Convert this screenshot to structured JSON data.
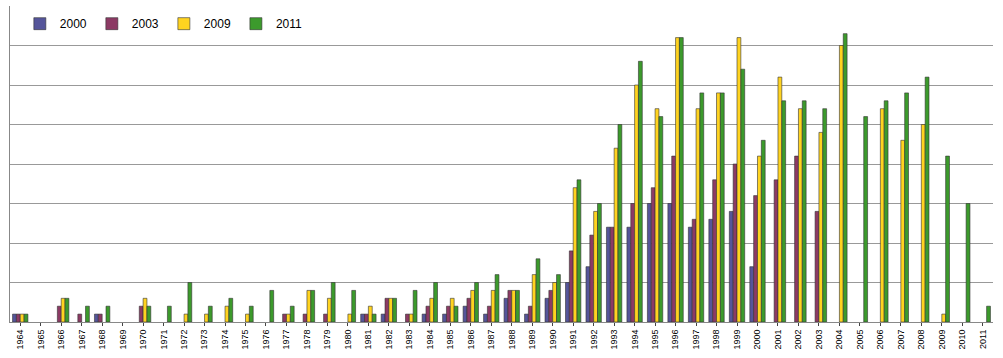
{
  "chart_data": {
    "type": "bar",
    "categories": [
      "1964",
      "1965",
      "1966",
      "1967",
      "1968",
      "1969",
      "1970",
      "1971",
      "1972",
      "1973",
      "1974",
      "1975",
      "1976",
      "1977",
      "1978",
      "1979",
      "1980",
      "1981",
      "1982",
      "1983",
      "1984",
      "1985",
      "1986",
      "1987",
      "1988",
      "1989",
      "1990",
      "1991",
      "1992",
      "1993",
      "1994",
      "1995",
      "1996",
      "1997",
      "1998",
      "1999",
      "2000",
      "2001",
      "2002",
      "2003",
      "2004",
      "2005",
      "2006",
      "2007",
      "2008",
      "2009",
      "2010",
      "2011"
    ],
    "series": [
      {
        "name": "2000",
        "color": "#55559a",
        "values": [
          0.2,
          null,
          null,
          null,
          0.2,
          null,
          null,
          null,
          null,
          null,
          null,
          null,
          null,
          null,
          null,
          null,
          null,
          0.2,
          0.2,
          null,
          0.2,
          0.2,
          0.4,
          0.2,
          0.6,
          0.2,
          0.6,
          1.0,
          1.4,
          2.4,
          2.4,
          3.0,
          3.0,
          2.4,
          2.6,
          2.8,
          1.4,
          null,
          null,
          null,
          null,
          null,
          null,
          null,
          null,
          null,
          null,
          null
        ]
      },
      {
        "name": "2003",
        "color": "#8c3a64",
        "values": [
          0.2,
          null,
          0.4,
          0.2,
          0.2,
          null,
          0.4,
          null,
          null,
          null,
          null,
          null,
          null,
          0.2,
          0.2,
          0.2,
          null,
          0.2,
          0.6,
          0.2,
          0.4,
          0.4,
          0.6,
          0.4,
          0.8,
          0.4,
          0.8,
          1.8,
          2.2,
          2.4,
          3.0,
          3.4,
          4.2,
          2.6,
          3.6,
          4.0,
          3.2,
          3.6,
          4.2,
          2.8,
          null,
          null,
          null,
          null,
          null,
          null,
          null,
          null
        ]
      },
      {
        "name": "2009",
        "color": "#ffd320",
        "values": [
          0.2,
          null,
          0.6,
          null,
          null,
          null,
          0.6,
          null,
          0.2,
          0.2,
          0.4,
          0.2,
          null,
          0.2,
          0.8,
          0.6,
          0.2,
          0.4,
          0.6,
          0.2,
          0.6,
          0.6,
          0.8,
          0.8,
          0.8,
          1.2,
          1.0,
          3.4,
          2.8,
          4.4,
          6.0,
          5.4,
          7.2,
          5.4,
          5.8,
          7.2,
          4.2,
          6.2,
          5.4,
          4.8,
          7.0,
          null,
          5.4,
          4.6,
          5.0,
          0.2,
          null,
          null
        ]
      },
      {
        "name": "2011",
        "color": "#3c9a2c",
        "values": [
          0.2,
          null,
          0.6,
          0.4,
          0.4,
          null,
          0.4,
          0.4,
          1.0,
          0.4,
          0.6,
          0.4,
          0.8,
          0.4,
          0.8,
          1.0,
          0.8,
          0.2,
          0.6,
          0.8,
          1.0,
          0.4,
          1.0,
          1.2,
          0.8,
          1.6,
          1.2,
          3.6,
          3.0,
          5.0,
          6.6,
          5.2,
          7.2,
          5.8,
          5.8,
          6.4,
          4.6,
          5.6,
          5.6,
          5.4,
          7.3,
          5.2,
          5.6,
          5.8,
          6.2,
          4.2,
          3.0,
          0.4
        ]
      }
    ],
    "ylim": [
      0,
      8
    ],
    "yticks": [
      0,
      1,
      2,
      3,
      4,
      5,
      6,
      7,
      8
    ],
    "grid": true,
    "legend": "top-left",
    "tick_labels": "x"
  }
}
